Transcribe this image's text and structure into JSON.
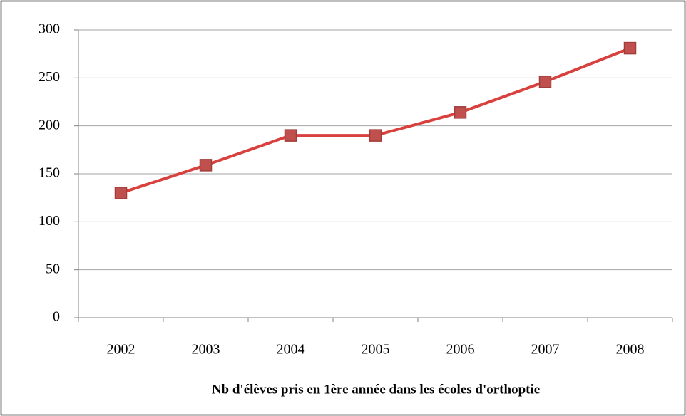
{
  "chart_data": {
    "type": "line",
    "x_label": "Nb d'élèves pris en 1ère année dans les écoles d'orthoptie",
    "categories": [
      "2002",
      "2003",
      "2004",
      "2005",
      "2006",
      "2007",
      "2008"
    ],
    "values": [
      130,
      159,
      190,
      190,
      214,
      246,
      281
    ],
    "color": "#d9413e",
    "ylim": [
      0,
      300
    ],
    "yticks": [
      0,
      50,
      100,
      150,
      200,
      250,
      300
    ],
    "grid": true
  }
}
